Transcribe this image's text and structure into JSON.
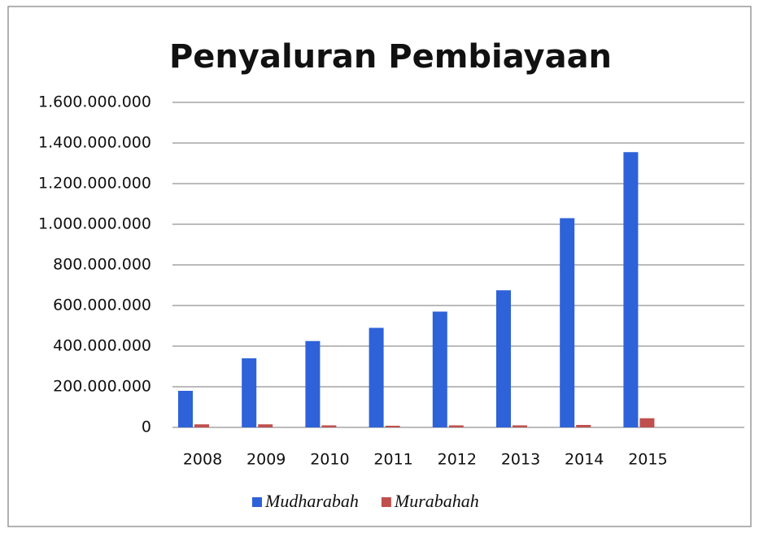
{
  "chart_data": {
    "type": "bar",
    "title": "Penyaluran Pembiayaan",
    "categories": [
      "2008",
      "2009",
      "2010",
      "2011",
      "2012",
      "2013",
      "2014",
      "2015"
    ],
    "series": [
      {
        "name": "Mudharabah",
        "color": "#2e62d9",
        "values": [
          180000000,
          340000000,
          425000000,
          490000000,
          570000000,
          675000000,
          1030000000,
          1355000000
        ]
      },
      {
        "name": "Murabahah",
        "color": "#c0504d",
        "values": [
          15000000,
          15000000,
          10000000,
          8000000,
          10000000,
          10000000,
          12000000,
          45000000
        ]
      }
    ],
    "ylim": [
      0,
      1600000000
    ],
    "yticks": [
      0,
      {
        "value": 200000000,
        "label": "200.000.000"
      },
      {
        "value": 400000000,
        "label": "400.000.000"
      },
      {
        "value": 600000000,
        "label": "600.000.000"
      },
      {
        "value": 800000000,
        "label": "800.000.000"
      },
      {
        "value": 1000000000,
        "label": "1.000.000.000"
      },
      {
        "value": 1200000000,
        "label": "1.200.000.000"
      },
      {
        "value": 1400000000,
        "label": "1.400.000.000"
      },
      {
        "value": 1600000000,
        "label": "1.600.000.000"
      }
    ],
    "grid": true,
    "legend": "bottom"
  }
}
